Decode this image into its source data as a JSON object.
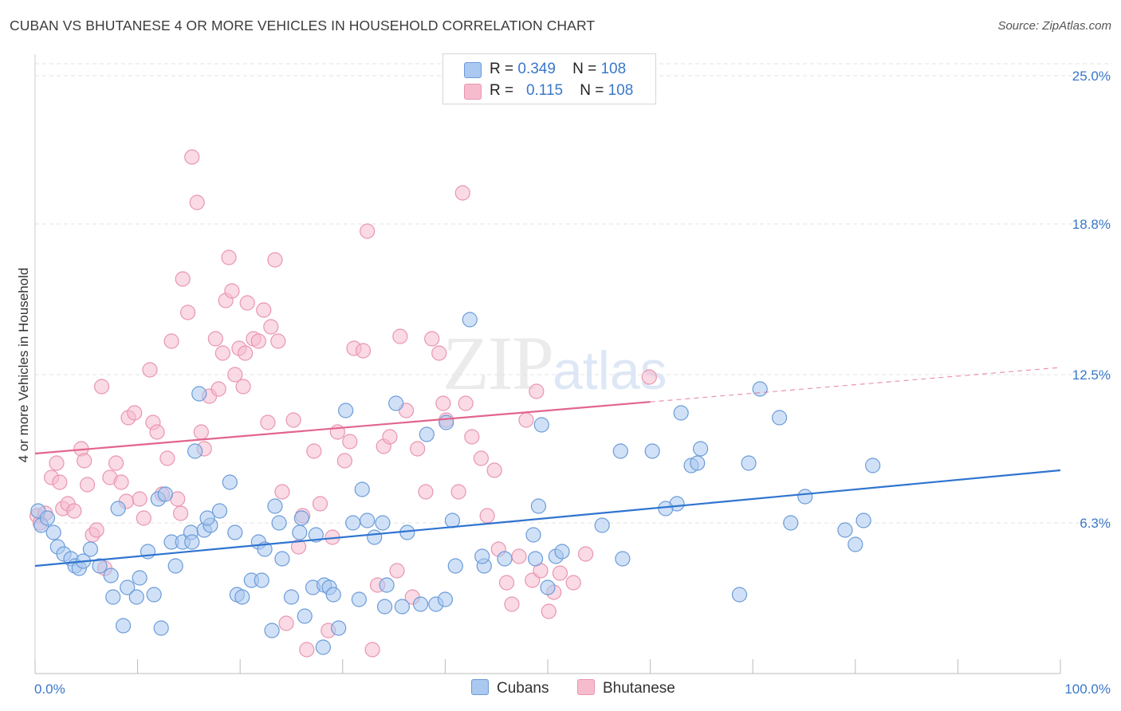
{
  "chart_data": {
    "type": "scatter",
    "title": "CUBAN VS BHUTANESE 4 OR MORE VEHICLES IN HOUSEHOLD CORRELATION CHART",
    "source": "Source: ZipAtlas.com",
    "xlabel": "",
    "ylabel": "4 or more Vehicles in Household",
    "xlim": [
      0,
      100
    ],
    "ylim": [
      0,
      25.5
    ],
    "x_tick_labels": [
      "0.0%",
      "100.0%"
    ],
    "y_ticks": [
      6.3,
      12.5,
      18.8,
      25.0
    ],
    "y_tick_labels": [
      "6.3%",
      "12.5%",
      "18.8%",
      "25.0%"
    ],
    "legend": {
      "rows": [
        {
          "r_label": "R =",
          "r_value": "0.349",
          "n_label": "N =",
          "n_value": "108"
        },
        {
          "r_label": "R =",
          "r_value": "0.115",
          "n_label": "N =",
          "n_value": "108"
        }
      ]
    },
    "watermark": {
      "zip": "ZIP",
      "atlas": "atlas"
    },
    "colors": {
      "blue_fill": "#aac8f0",
      "blue_stroke": "#6b9bd8",
      "blue_line": "#2f74d0",
      "pink_fill": "#f6bccd",
      "pink_stroke": "#e995b0",
      "pink_line": "#e2658d",
      "grid": "#e3e3e3",
      "axis_label": "#3a78c9"
    },
    "series": [
      {
        "name": "Cubans",
        "trend": {
          "x0": 0,
          "y0": 4.5,
          "x1": 100,
          "y1": 8.5
        },
        "points": [
          [
            0.3,
            6.8
          ],
          [
            0.6,
            6.2
          ],
          [
            1.2,
            6.5
          ],
          [
            1.8,
            5.9
          ],
          [
            2.2,
            5.3
          ],
          [
            2.8,
            5.0
          ],
          [
            3.5,
            4.8
          ],
          [
            3.9,
            4.5
          ],
          [
            4.3,
            4.4
          ],
          [
            4.7,
            4.7
          ],
          [
            5.4,
            5.2
          ],
          [
            6.3,
            4.5
          ],
          [
            7.4,
            4.1
          ],
          [
            8.1,
            6.9
          ],
          [
            7.6,
            3.2
          ],
          [
            8.6,
            2.0
          ],
          [
            9.0,
            3.6
          ],
          [
            9.9,
            3.2
          ],
          [
            10.2,
            4.0
          ],
          [
            11.0,
            5.1
          ],
          [
            11.6,
            3.3
          ],
          [
            12.0,
            7.3
          ],
          [
            12.3,
            1.9
          ],
          [
            12.7,
            7.5
          ],
          [
            13.3,
            5.5
          ],
          [
            13.7,
            4.5
          ],
          [
            14.4,
            5.5
          ],
          [
            15.2,
            5.9
          ],
          [
            15.3,
            5.5
          ],
          [
            15.6,
            9.3
          ],
          [
            16.0,
            11.7
          ],
          [
            16.5,
            6.0
          ],
          [
            17.1,
            6.2
          ],
          [
            16.8,
            6.5
          ],
          [
            18.0,
            6.8
          ],
          [
            19.0,
            8.0
          ],
          [
            19.7,
            3.3
          ],
          [
            19.5,
            5.9
          ],
          [
            20.2,
            3.2
          ],
          [
            21.1,
            3.9
          ],
          [
            21.8,
            5.5
          ],
          [
            22.1,
            3.9
          ],
          [
            22.4,
            5.2
          ],
          [
            23.1,
            1.8
          ],
          [
            23.4,
            7.0
          ],
          [
            23.8,
            6.3
          ],
          [
            24.1,
            4.8
          ],
          [
            25.0,
            3.2
          ],
          [
            25.8,
            5.9
          ],
          [
            26.0,
            6.5
          ],
          [
            26.3,
            2.4
          ],
          [
            27.1,
            3.6
          ],
          [
            27.4,
            5.8
          ],
          [
            28.1,
            1.1
          ],
          [
            28.2,
            3.7
          ],
          [
            28.7,
            3.6
          ],
          [
            29.1,
            3.3
          ],
          [
            29.6,
            1.9
          ],
          [
            30.3,
            11.0
          ],
          [
            31.0,
            6.3
          ],
          [
            31.9,
            7.7
          ],
          [
            32.4,
            6.4
          ],
          [
            31.6,
            3.1
          ],
          [
            33.1,
            5.7
          ],
          [
            33.9,
            6.3
          ],
          [
            34.1,
            2.8
          ],
          [
            34.3,
            3.7
          ],
          [
            35.2,
            11.3
          ],
          [
            35.8,
            2.8
          ],
          [
            36.3,
            5.9
          ],
          [
            37.6,
            2.9
          ],
          [
            38.2,
            10.0
          ],
          [
            39.1,
            2.9
          ],
          [
            40.0,
            3.1
          ],
          [
            40.1,
            10.5
          ],
          [
            40.7,
            6.4
          ],
          [
            41.0,
            4.5
          ],
          [
            42.4,
            14.8
          ],
          [
            43.8,
            4.5
          ],
          [
            43.6,
            4.9
          ],
          [
            45.8,
            4.8
          ],
          [
            48.6,
            5.8
          ],
          [
            48.8,
            4.8
          ],
          [
            49.1,
            7.0
          ],
          [
            49.4,
            10.4
          ],
          [
            50.0,
            3.6
          ],
          [
            50.8,
            4.9
          ],
          [
            51.4,
            5.1
          ],
          [
            55.3,
            6.2
          ],
          [
            57.1,
            9.3
          ],
          [
            57.3,
            4.8
          ],
          [
            62.6,
            7.1
          ],
          [
            63.0,
            10.9
          ],
          [
            64.0,
            8.7
          ],
          [
            64.6,
            8.8
          ],
          [
            64.9,
            9.4
          ],
          [
            68.7,
            3.3
          ],
          [
            69.6,
            8.8
          ],
          [
            70.7,
            11.9
          ],
          [
            73.7,
            6.3
          ],
          [
            75.1,
            7.4
          ],
          [
            79.0,
            6.0
          ],
          [
            80.0,
            5.4
          ],
          [
            80.8,
            6.4
          ],
          [
            81.7,
            8.7
          ],
          [
            72.6,
            10.7
          ],
          [
            61.5,
            6.9
          ],
          [
            60.2,
            9.3
          ]
        ]
      },
      {
        "name": "Bhutanese",
        "trend": {
          "x0": 0,
          "y0": 9.2,
          "x1": 100,
          "y1": 12.8
        },
        "solid_until_x": 60,
        "points": [
          [
            0.2,
            6.6
          ],
          [
            0.5,
            6.3
          ],
          [
            1.0,
            6.7
          ],
          [
            1.6,
            8.2
          ],
          [
            2.1,
            8.8
          ],
          [
            2.4,
            8.0
          ],
          [
            2.7,
            6.9
          ],
          [
            3.2,
            7.1
          ],
          [
            3.8,
            6.8
          ],
          [
            4.5,
            9.4
          ],
          [
            4.8,
            8.9
          ],
          [
            5.1,
            7.9
          ],
          [
            5.6,
            5.8
          ],
          [
            6.0,
            6.0
          ],
          [
            6.5,
            12.0
          ],
          [
            6.8,
            4.4
          ],
          [
            7.3,
            8.2
          ],
          [
            7.9,
            8.8
          ],
          [
            8.4,
            8.0
          ],
          [
            8.9,
            7.2
          ],
          [
            9.1,
            10.7
          ],
          [
            9.7,
            10.9
          ],
          [
            10.2,
            7.3
          ],
          [
            10.6,
            6.5
          ],
          [
            11.2,
            12.7
          ],
          [
            11.5,
            10.5
          ],
          [
            11.9,
            10.1
          ],
          [
            12.4,
            7.5
          ],
          [
            12.9,
            9.0
          ],
          [
            13.3,
            13.9
          ],
          [
            13.9,
            7.3
          ],
          [
            14.2,
            6.7
          ],
          [
            14.4,
            16.5
          ],
          [
            14.9,
            15.1
          ],
          [
            15.3,
            21.6
          ],
          [
            15.8,
            19.7
          ],
          [
            16.2,
            10.1
          ],
          [
            16.5,
            9.4
          ],
          [
            17.0,
            11.6
          ],
          [
            17.6,
            14.0
          ],
          [
            17.9,
            11.9
          ],
          [
            18.3,
            13.4
          ],
          [
            18.6,
            15.6
          ],
          [
            18.9,
            17.4
          ],
          [
            19.2,
            16.0
          ],
          [
            19.5,
            12.5
          ],
          [
            19.9,
            13.6
          ],
          [
            20.3,
            12.0
          ],
          [
            20.5,
            13.4
          ],
          [
            20.7,
            15.5
          ],
          [
            21.3,
            14.0
          ],
          [
            21.8,
            13.9
          ],
          [
            22.3,
            15.2
          ],
          [
            22.7,
            10.5
          ],
          [
            23.0,
            14.5
          ],
          [
            23.4,
            17.3
          ],
          [
            23.7,
            13.9
          ],
          [
            24.1,
            7.6
          ],
          [
            24.5,
            2.1
          ],
          [
            25.2,
            10.6
          ],
          [
            25.7,
            5.3
          ],
          [
            26.1,
            6.6
          ],
          [
            26.5,
            1.0
          ],
          [
            27.2,
            9.3
          ],
          [
            27.8,
            7.1
          ],
          [
            28.6,
            1.8
          ],
          [
            29.0,
            5.7
          ],
          [
            29.5,
            10.1
          ],
          [
            30.2,
            8.9
          ],
          [
            30.7,
            9.7
          ],
          [
            31.1,
            13.6
          ],
          [
            32.0,
            13.5
          ],
          [
            32.4,
            18.5
          ],
          [
            32.9,
            1.0
          ],
          [
            33.4,
            3.7
          ],
          [
            34.0,
            9.5
          ],
          [
            34.6,
            9.9
          ],
          [
            35.3,
            4.3
          ],
          [
            35.6,
            14.1
          ],
          [
            36.2,
            11.0
          ],
          [
            36.8,
            3.2
          ],
          [
            37.3,
            9.4
          ],
          [
            38.1,
            7.6
          ],
          [
            38.7,
            14.0
          ],
          [
            39.4,
            13.4
          ],
          [
            39.8,
            11.3
          ],
          [
            40.1,
            10.6
          ],
          [
            41.3,
            7.6
          ],
          [
            41.7,
            20.1
          ],
          [
            42.0,
            11.3
          ],
          [
            42.6,
            9.9
          ],
          [
            43.5,
            9.0
          ],
          [
            44.8,
            8.5
          ],
          [
            44.1,
            6.6
          ],
          [
            45.2,
            5.2
          ],
          [
            46.0,
            3.8
          ],
          [
            46.5,
            2.9
          ],
          [
            47.2,
            4.9
          ],
          [
            47.9,
            10.6
          ],
          [
            48.5,
            3.9
          ],
          [
            48.9,
            11.8
          ],
          [
            53.7,
            5.0
          ],
          [
            59.9,
            12.4
          ],
          [
            49.3,
            4.3
          ],
          [
            50.1,
            2.6
          ],
          [
            50.6,
            3.4
          ],
          [
            51.2,
            4.2
          ],
          [
            52.5,
            3.8
          ]
        ]
      }
    ]
  },
  "legend_bottom": {
    "cubans": "Cubans",
    "bhutanese": "Bhutanese"
  }
}
